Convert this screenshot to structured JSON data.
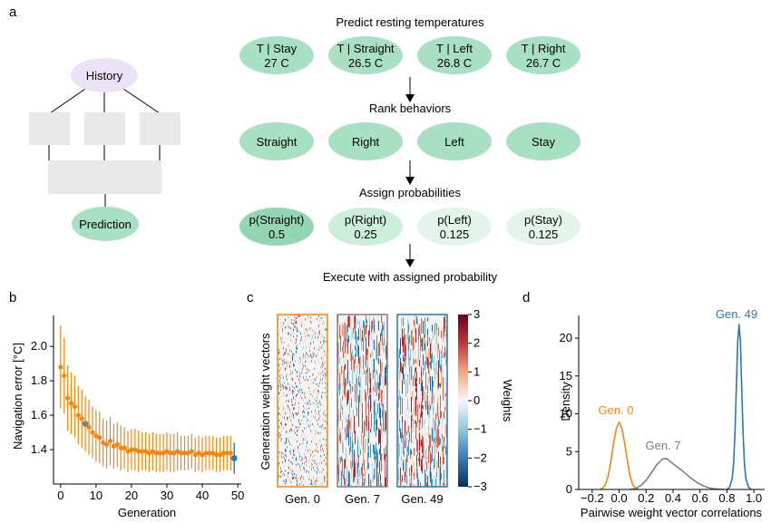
{
  "panel_labels": {
    "a": "a",
    "b": "b",
    "c": "c",
    "d": "d"
  },
  "panel_a": {
    "diagram": {
      "top_node": "History",
      "bottom_node": "Prediction"
    },
    "steps": [
      {
        "title": "Predict resting temperatures",
        "nodes": [
          {
            "line1": "T | Stay",
            "line2": "27 C",
            "shade": "#a8e0c4"
          },
          {
            "line1": "T | Straight",
            "line2": "26.5 C",
            "shade": "#a8e0c4"
          },
          {
            "line1": "T | Left",
            "line2": "26.8 C",
            "shade": "#a8e0c4"
          },
          {
            "line1": "T | Right",
            "line2": "26.7 C",
            "shade": "#a8e0c4"
          }
        ]
      },
      {
        "title": "Rank behaviors",
        "nodes": [
          {
            "line1": "Straight",
            "line2": "",
            "shade": "#a8e0c4"
          },
          {
            "line1": "Right",
            "line2": "",
            "shade": "#a8e0c4"
          },
          {
            "line1": "Left",
            "line2": "",
            "shade": "#a8e0c4"
          },
          {
            "line1": "Stay",
            "line2": "",
            "shade": "#a8e0c4"
          }
        ]
      },
      {
        "title": "Assign probabilities",
        "nodes": [
          {
            "line1": "p(Straight)",
            "line2": "0.5",
            "shade": "#93d6b3"
          },
          {
            "line1": "p(Right)",
            "line2": "0.25",
            "shade": "#ccedda"
          },
          {
            "line1": "p(Left)",
            "line2": "0.125",
            "shade": "#e3f5ea"
          },
          {
            "line1": "p(Stay)",
            "line2": "0.125",
            "shade": "#e3f5ea"
          }
        ]
      }
    ],
    "final": "Execute with assigned probability"
  },
  "chart_data": [
    {
      "type": "scatter",
      "panel": "b",
      "xlabel": "Generation",
      "ylabel": "Navigation error [°C]",
      "xlim": [
        -2,
        51
      ],
      "ylim": [
        1.2,
        2.18
      ],
      "xticks": [
        0,
        10,
        20,
        30,
        40,
        50
      ],
      "yticks": [
        1.4,
        1.6,
        1.8,
        2.0
      ],
      "ytick_labels": [
        "1.4",
        "1.6",
        "1.8",
        "2.0"
      ],
      "series": [
        {
          "color": "#f5850f",
          "x": [
            0,
            1,
            2,
            3,
            4,
            5,
            6,
            7,
            8,
            9,
            10,
            11,
            12,
            13,
            14,
            15,
            16,
            17,
            18,
            19,
            20,
            21,
            22,
            23,
            24,
            25,
            26,
            27,
            28,
            29,
            30,
            31,
            32,
            33,
            34,
            35,
            36,
            37,
            38,
            39,
            40,
            41,
            42,
            43,
            44,
            45,
            46,
            47,
            48,
            49
          ],
          "y": [
            1.88,
            1.83,
            1.7,
            1.67,
            1.65,
            1.6,
            1.58,
            1.55,
            1.53,
            1.5,
            1.48,
            1.47,
            1.44,
            1.43,
            1.45,
            1.42,
            1.43,
            1.41,
            1.41,
            1.39,
            1.4,
            1.4,
            1.39,
            1.39,
            1.39,
            1.38,
            1.39,
            1.38,
            1.38,
            1.38,
            1.39,
            1.38,
            1.38,
            1.39,
            1.38,
            1.38,
            1.38,
            1.39,
            1.37,
            1.38,
            1.37,
            1.38,
            1.38,
            1.38,
            1.37,
            1.37,
            1.38,
            1.38,
            1.38,
            1.35
          ],
          "err": [
            0.24,
            0.22,
            0.19,
            0.18,
            0.18,
            0.17,
            0.17,
            0.16,
            0.16,
            0.15,
            0.15,
            0.15,
            0.14,
            0.14,
            0.14,
            0.13,
            0.13,
            0.13,
            0.12,
            0.12,
            0.12,
            0.12,
            0.12,
            0.11,
            0.11,
            0.11,
            0.11,
            0.11,
            0.11,
            0.11,
            0.11,
            0.11,
            0.11,
            0.11,
            0.1,
            0.1,
            0.1,
            0.1,
            0.1,
            0.1,
            0.1,
            0.1,
            0.1,
            0.1,
            0.1,
            0.1,
            0.1,
            0.1,
            0.1,
            0.09
          ]
        }
      ],
      "highlights": [
        {
          "x": 7,
          "color": "#7f7f7f"
        },
        {
          "x": 49,
          "color": "#2878b5"
        }
      ]
    },
    {
      "type": "heatmap",
      "panel": "c",
      "ylabel": "Generation weight vectors",
      "columns": [
        {
          "label": "Gen. 0",
          "border": "#f5850f"
        },
        {
          "label": "Gen. 7",
          "border": "#7f7f7f"
        },
        {
          "label": "Gen. 49",
          "border": "#2878b5"
        }
      ],
      "colorbar": {
        "label": "Weights",
        "range": [
          -3,
          3
        ],
        "ticks": [
          3,
          2,
          1,
          0,
          -1,
          -2,
          -3
        ],
        "tick_labels": [
          "3",
          "2",
          "1",
          "0",
          "−1",
          "−2",
          "−3"
        ]
      }
    },
    {
      "type": "line",
      "panel": "d",
      "xlabel": "Pairwise weight vector correlations",
      "ylabel": "Density",
      "xlim": [
        -0.3,
        1.08
      ],
      "ylim": [
        0,
        23
      ],
      "xticks": [
        -0.2,
        0.0,
        0.2,
        0.4,
        0.6,
        0.8,
        1.0
      ],
      "xtick_labels": [
        "−0.2",
        "0.0",
        "0.2",
        "0.4",
        "0.6",
        "0.8",
        "1.0"
      ],
      "yticks": [
        0,
        5,
        10,
        15,
        20
      ],
      "series": [
        {
          "name": "Gen. 0",
          "color": "#f5850f",
          "x": [
            -0.14,
            -0.12,
            -0.1,
            -0.08,
            -0.06,
            -0.04,
            -0.02,
            0.0,
            0.02,
            0.04,
            0.06,
            0.08,
            0.1,
            0.12,
            0.14
          ],
          "y": [
            0.0,
            0.2,
            0.7,
            1.9,
            3.9,
            6.2,
            8.1,
            8.9,
            8.1,
            6.2,
            3.9,
            1.9,
            0.7,
            0.2,
            0.0
          ]
        },
        {
          "name": "Gen. 7",
          "color": "#7f7f7f",
          "x": [
            0.08,
            0.12,
            0.16,
            0.2,
            0.24,
            0.28,
            0.32,
            0.35,
            0.38,
            0.42,
            0.46,
            0.5,
            0.54,
            0.58,
            0.62,
            0.66,
            0.7,
            0.74,
            0.78
          ],
          "y": [
            0.0,
            0.1,
            0.5,
            1.2,
            2.2,
            3.3,
            4.0,
            4.1,
            3.7,
            3.1,
            2.6,
            2.0,
            1.4,
            0.9,
            0.5,
            0.25,
            0.1,
            0.03,
            0.0
          ]
        },
        {
          "name": "Gen. 49",
          "color": "#2878b5",
          "x": [
            0.8,
            0.82,
            0.84,
            0.85,
            0.86,
            0.87,
            0.88,
            0.89,
            0.9,
            0.91,
            0.92,
            0.93,
            0.94,
            0.96,
            0.98
          ],
          "y": [
            0.0,
            0.3,
            1.5,
            3.5,
            7.5,
            13.5,
            19.5,
            21.8,
            19.5,
            13.5,
            7.5,
            3.5,
            1.5,
            0.3,
            0.0
          ]
        }
      ]
    }
  ]
}
